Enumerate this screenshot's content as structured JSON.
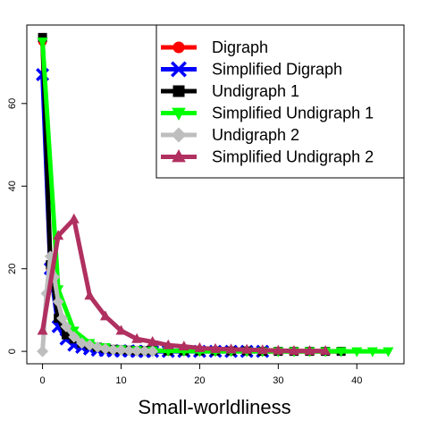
{
  "chart_data": {
    "type": "line",
    "title": "",
    "xlabel": "Small-worldliness",
    "ylabel": "",
    "xlim": [
      -2,
      46
    ],
    "ylim": [
      -3,
      79
    ],
    "x_ticks": [
      0,
      10,
      20,
      30,
      40
    ],
    "y_ticks": [
      0,
      20,
      40,
      60
    ],
    "legend_position": "top-right",
    "series": [
      {
        "name": "Digraph",
        "color": "#ff0000",
        "marker": "circle",
        "x": [
          0,
          1,
          2,
          3,
          4,
          5,
          6,
          7,
          8,
          9,
          10,
          11,
          12,
          13,
          14,
          16,
          18,
          20,
          22,
          24,
          26,
          28,
          30,
          32,
          34,
          36,
          38
        ],
        "y": [
          75,
          20,
          7,
          4,
          3,
          2,
          1.5,
          1,
          0.6,
          0.5,
          0.4,
          0.3,
          0.2,
          0.2,
          0.2,
          0.1,
          0.1,
          0.1,
          0.1,
          0.1,
          0.1,
          0,
          0,
          0,
          0,
          0,
          0
        ]
      },
      {
        "name": "Simplified Digraph",
        "color": "#0000ff",
        "marker": "x",
        "x": [
          0,
          1,
          2,
          3,
          4,
          5,
          6,
          7,
          8,
          9,
          10,
          11,
          12,
          13,
          14,
          16,
          18,
          20,
          22,
          24,
          26,
          28
        ],
        "y": [
          67,
          20,
          6,
          3,
          1.5,
          1,
          0.6,
          0.3,
          0.2,
          0.1,
          0.1,
          0.1,
          0,
          0,
          0,
          0,
          0,
          0,
          0,
          0,
          0,
          0
        ]
      },
      {
        "name": "Undigraph 1",
        "color": "#000000",
        "marker": "square",
        "x": [
          0,
          1,
          2,
          3,
          4,
          5,
          6,
          7,
          8,
          9,
          10,
          11,
          12,
          13,
          14,
          16,
          18,
          20,
          22,
          24,
          26,
          28,
          30,
          32,
          34,
          36,
          38
        ],
        "y": [
          76,
          21,
          8,
          4,
          3,
          2,
          1.5,
          1,
          0.7,
          0.5,
          0.4,
          0.3,
          0.2,
          0.2,
          0.2,
          0.1,
          0.1,
          0.1,
          0.1,
          0.1,
          0.1,
          0,
          0,
          0,
          0,
          0,
          0
        ]
      },
      {
        "name": "Simplified Undigraph 1",
        "color": "#00ff00",
        "marker": "triangle-down",
        "x": [
          0,
          2,
          4,
          6,
          8,
          10,
          12,
          14,
          16,
          18,
          20,
          22,
          24,
          26,
          28,
          30,
          32,
          34,
          36,
          38,
          40,
          42,
          44
        ],
        "y": [
          75,
          15,
          5,
          2,
          1,
          0.5,
          0.3,
          0.2,
          0.1,
          0.1,
          0,
          0,
          0,
          0,
          0,
          0,
          0,
          0,
          0,
          0,
          0,
          0,
          0
        ]
      },
      {
        "name": "Undigraph 2",
        "color": "#bebebe",
        "marker": "diamond",
        "x": [
          0,
          0.5,
          1,
          1.5,
          2,
          2.5,
          3,
          4,
          5,
          6,
          7,
          8,
          9,
          10,
          11,
          12,
          13,
          14
        ],
        "y": [
          0,
          14,
          23,
          18,
          12,
          8,
          6,
          3.5,
          2,
          1.5,
          1,
          0.6,
          0.4,
          0.3,
          0.2,
          0.1,
          0.1,
          0
        ]
      },
      {
        "name": "Simplified Undigraph 2",
        "color": "#b03060",
        "marker": "triangle-up",
        "x": [
          0,
          2,
          4,
          6,
          8,
          10,
          12,
          14,
          16,
          18,
          20,
          22,
          24,
          26,
          28,
          30,
          32,
          34,
          36
        ],
        "y": [
          5,
          28,
          32,
          13.5,
          8.5,
          5,
          3,
          2.3,
          1.5,
          1.2,
          0.8,
          0.6,
          0.5,
          0.4,
          0.3,
          0.2,
          0.1,
          0.1,
          0.1
        ]
      }
    ]
  }
}
